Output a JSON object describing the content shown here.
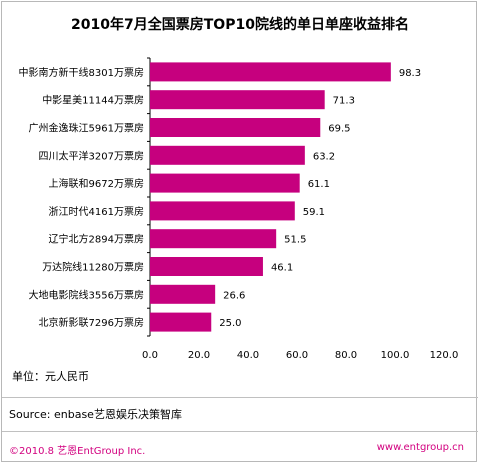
{
  "chart_data": {
    "type": "bar",
    "orientation": "horizontal",
    "title": "2010年7月全国票房TOP10院线的单日单座收益排名",
    "categories": [
      "中影南方新干线8301万票房",
      "中影星美11144万票房",
      "广州金逸珠江5961万票房",
      "四川太平洋3207万票房",
      "上海联和9672万票房",
      "浙江时代4161万票房",
      "辽宁北方2894万票房",
      "万达院线11280万票房",
      "大地电影院线3556万票房",
      "北京新影联7296万票房"
    ],
    "values": [
      98.3,
      71.3,
      69.5,
      63.2,
      61.1,
      59.1,
      51.5,
      46.1,
      26.6,
      25.0
    ],
    "value_labels": [
      "98.3",
      "71.3",
      "69.5",
      "63.2",
      "61.1",
      "59.1",
      "51.5",
      "46.1",
      "26.6",
      "25.0"
    ],
    "xlim": [
      0,
      120
    ],
    "xticks": [
      "0.0",
      "20.0",
      "40.0",
      "60.0",
      "80.0",
      "100.0",
      "120.0"
    ],
    "grid": false,
    "bar_color": "#c6007e"
  },
  "unit_label": "单位：元人民币",
  "source": "Source: enbase艺恩娱乐决策智库",
  "copyright": "©2010.8  艺恩EntGroup Inc.",
  "website": "www.entgroup.cn"
}
